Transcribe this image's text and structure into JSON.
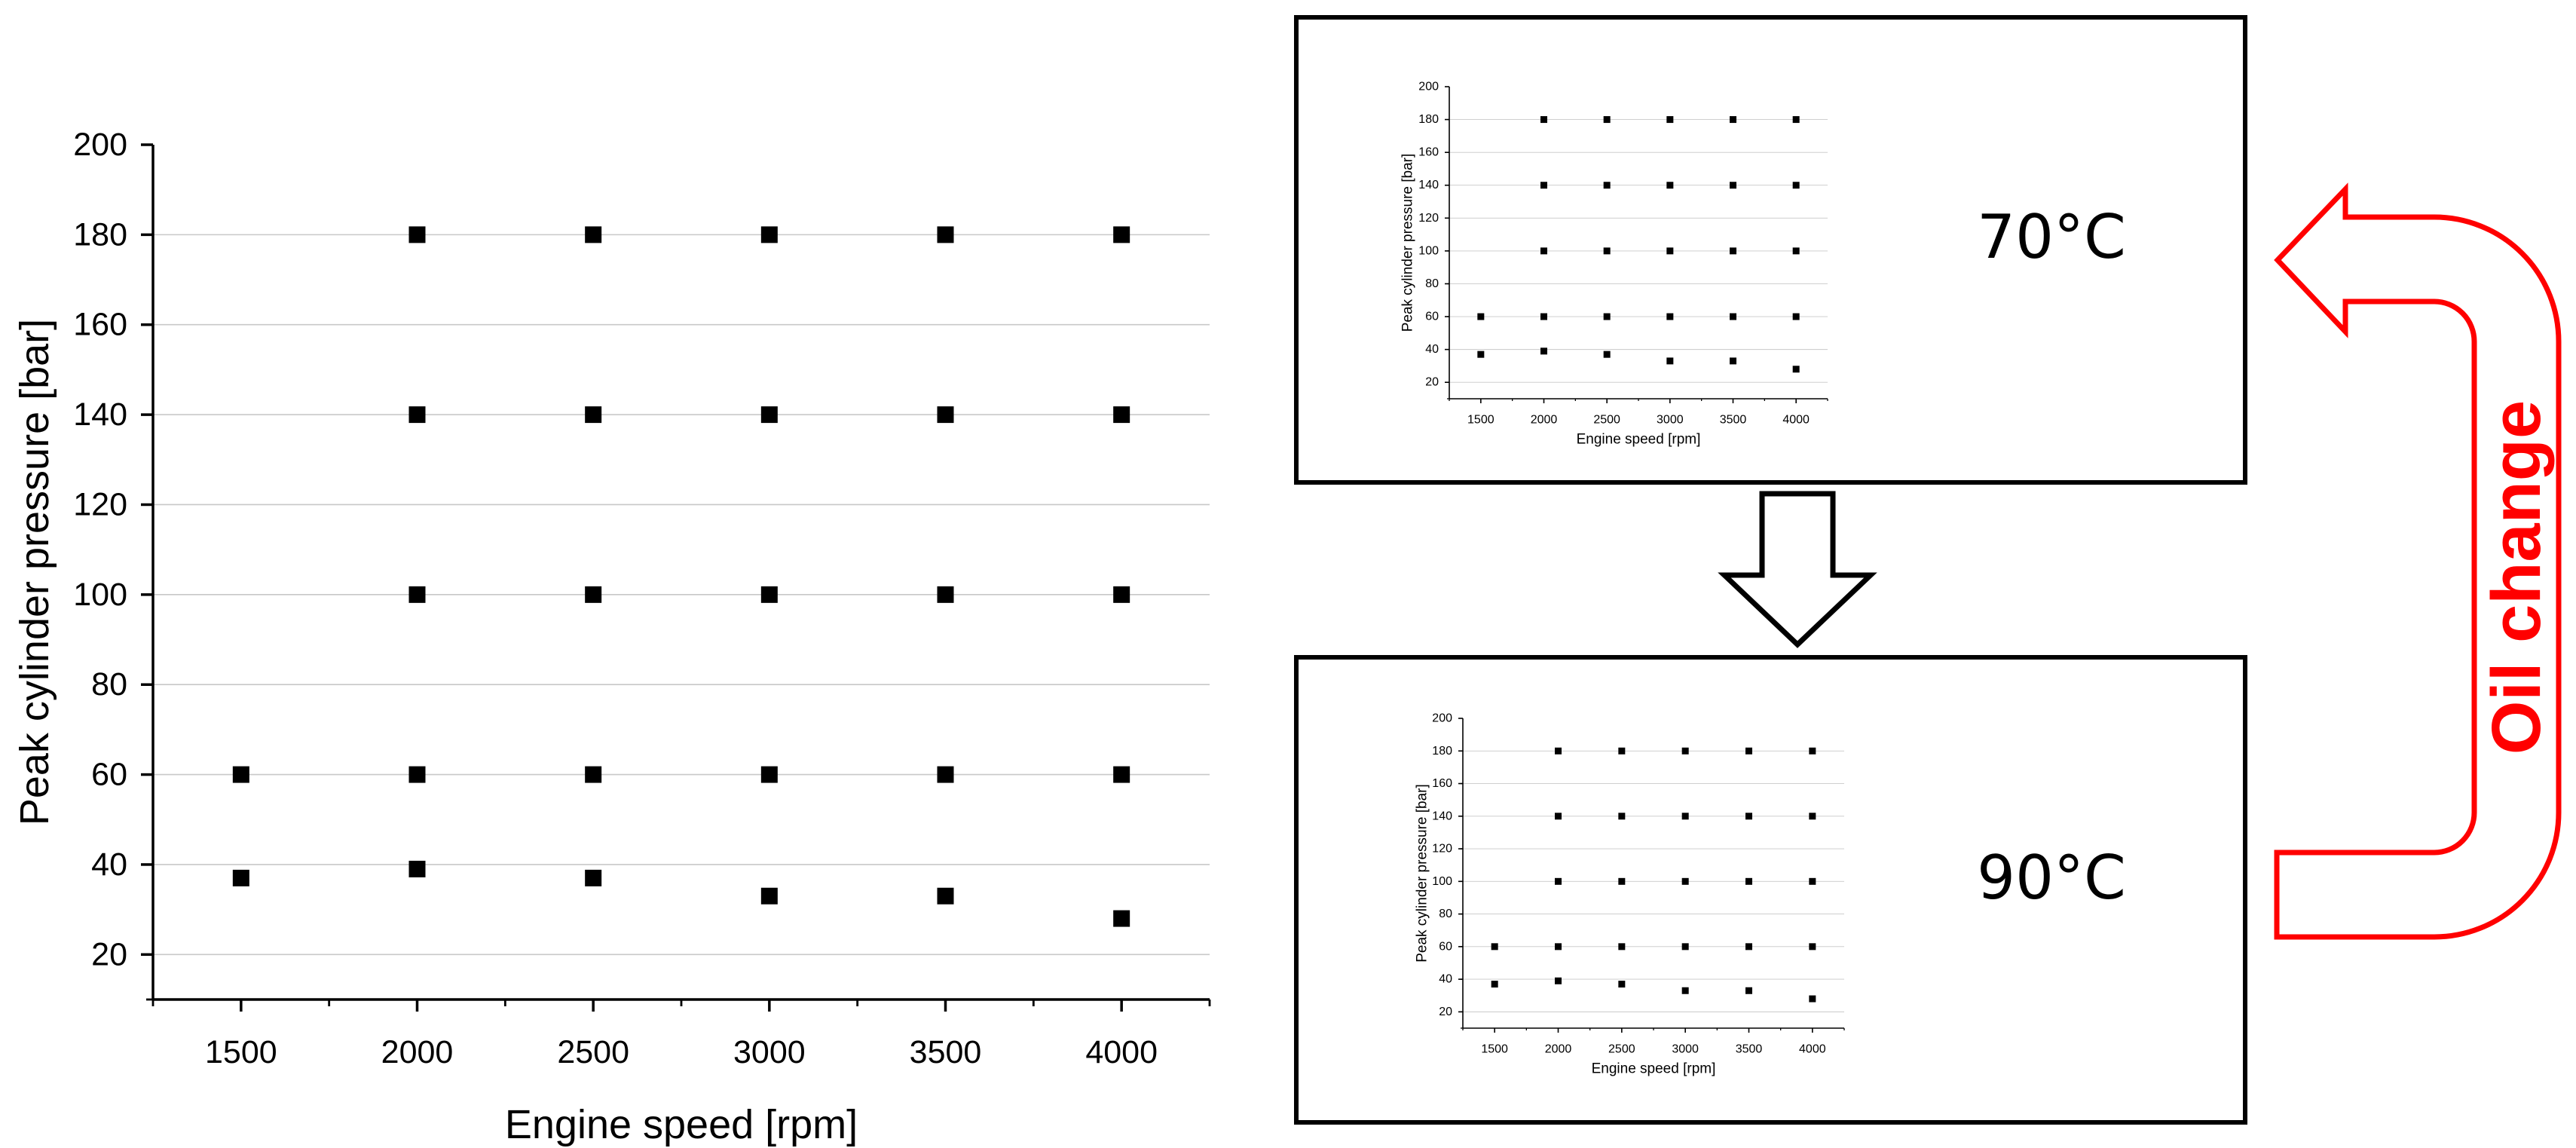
{
  "chart_data": [
    {
      "type": "scatter",
      "panel": "main",
      "xlabel": "Engine speed [rpm]",
      "ylabel": "Peak cylinder pressure [bar]",
      "xlim": [
        1250,
        4250
      ],
      "ylim": [
        10,
        200
      ],
      "xticks": [
        1500,
        2000,
        2500,
        3000,
        3500,
        4000
      ],
      "yticks": [
        20,
        40,
        60,
        80,
        100,
        120,
        140,
        160,
        180,
        200
      ],
      "grid": "horizontal",
      "series": [
        {
          "marker": "square",
          "color": "#000000",
          "points": [
            [
              1500,
              60
            ],
            [
              1500,
              37
            ],
            [
              2000,
              180
            ],
            [
              2000,
              140
            ],
            [
              2000,
              100
            ],
            [
              2000,
              60
            ],
            [
              2000,
              39
            ],
            [
              2500,
              180
            ],
            [
              2500,
              140
            ],
            [
              2500,
              100
            ],
            [
              2500,
              60
            ],
            [
              2500,
              37
            ],
            [
              3000,
              180
            ],
            [
              3000,
              140
            ],
            [
              3000,
              100
            ],
            [
              3000,
              60
            ],
            [
              3000,
              33
            ],
            [
              3500,
              180
            ],
            [
              3500,
              140
            ],
            [
              3500,
              100
            ],
            [
              3500,
              60
            ],
            [
              3500,
              33
            ],
            [
              4000,
              180
            ],
            [
              4000,
              140
            ],
            [
              4000,
              100
            ],
            [
              4000,
              60
            ],
            [
              4000,
              28
            ]
          ]
        }
      ]
    },
    {
      "type": "scatter",
      "panel": "top",
      "xlabel": "Engine speed [rpm]",
      "ylabel": "Peak cylinder pressure [bar]",
      "xlim": [
        1250,
        4250
      ],
      "ylim": [
        10,
        200
      ],
      "xticks": [
        1500,
        2000,
        2500,
        3000,
        3500,
        4000
      ],
      "yticks": [
        20,
        40,
        60,
        80,
        100,
        120,
        140,
        160,
        180,
        200
      ],
      "grid": "horizontal",
      "series": [
        {
          "marker": "square",
          "color": "#000000",
          "points": [
            [
              1500,
              60
            ],
            [
              1500,
              37
            ],
            [
              2000,
              180
            ],
            [
              2000,
              140
            ],
            [
              2000,
              100
            ],
            [
              2000,
              60
            ],
            [
              2000,
              39
            ],
            [
              2500,
              180
            ],
            [
              2500,
              140
            ],
            [
              2500,
              100
            ],
            [
              2500,
              60
            ],
            [
              2500,
              37
            ],
            [
              3000,
              180
            ],
            [
              3000,
              140
            ],
            [
              3000,
              100
            ],
            [
              3000,
              60
            ],
            [
              3000,
              33
            ],
            [
              3500,
              180
            ],
            [
              3500,
              140
            ],
            [
              3500,
              100
            ],
            [
              3500,
              60
            ],
            [
              3500,
              33
            ],
            [
              4000,
              180
            ],
            [
              4000,
              140
            ],
            [
              4000,
              100
            ],
            [
              4000,
              60
            ],
            [
              4000,
              28
            ]
          ]
        }
      ]
    },
    {
      "type": "scatter",
      "panel": "bottom",
      "xlabel": "Engine speed [rpm]",
      "ylabel": "Peak cylinder pressure [bar]",
      "xlim": [
        1250,
        4250
      ],
      "ylim": [
        10,
        200
      ],
      "xticks": [
        1500,
        2000,
        2500,
        3000,
        3500,
        4000
      ],
      "yticks": [
        20,
        40,
        60,
        80,
        100,
        120,
        140,
        160,
        180,
        200
      ],
      "grid": "horizontal",
      "series": [
        {
          "marker": "square",
          "color": "#000000",
          "points": [
            [
              1500,
              60
            ],
            [
              1500,
              37
            ],
            [
              2000,
              180
            ],
            [
              2000,
              140
            ],
            [
              2000,
              100
            ],
            [
              2000,
              60
            ],
            [
              2000,
              39
            ],
            [
              2500,
              180
            ],
            [
              2500,
              140
            ],
            [
              2500,
              100
            ],
            [
              2500,
              60
            ],
            [
              2500,
              37
            ],
            [
              3000,
              180
            ],
            [
              3000,
              140
            ],
            [
              3000,
              100
            ],
            [
              3000,
              60
            ],
            [
              3000,
              33
            ],
            [
              3500,
              180
            ],
            [
              3500,
              140
            ],
            [
              3500,
              100
            ],
            [
              3500,
              60
            ],
            [
              3500,
              33
            ],
            [
              4000,
              180
            ],
            [
              4000,
              140
            ],
            [
              4000,
              100
            ],
            [
              4000,
              60
            ],
            [
              4000,
              28
            ]
          ]
        }
      ]
    }
  ],
  "panels": {
    "top_temperature": "70°C",
    "bottom_temperature": "90°C"
  },
  "annotations": {
    "oil_change_label": "Oil change",
    "oil_change_color": "#ff0000",
    "transition_arrow_color": "#000000"
  }
}
